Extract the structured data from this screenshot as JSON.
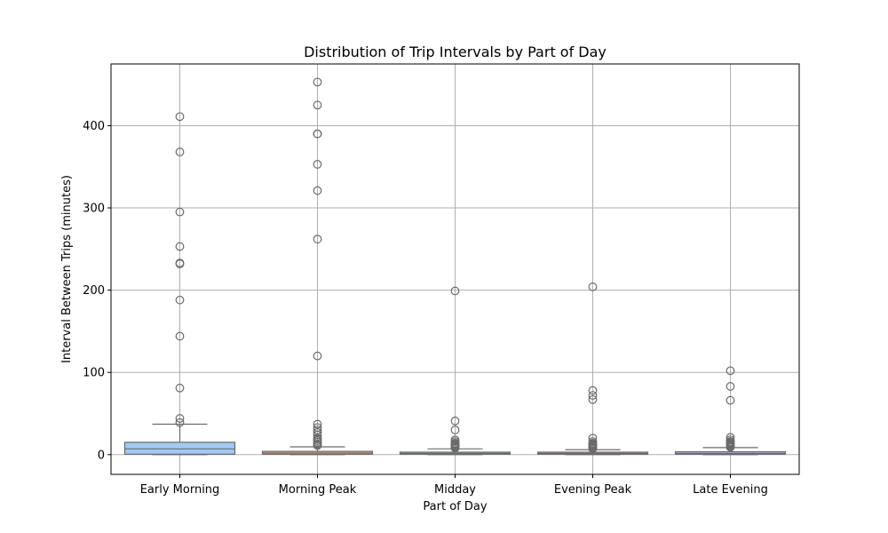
{
  "chart_data": {
    "type": "box",
    "title": "Distribution of Trip Intervals by Part of Day",
    "xlabel": "Part of Day",
    "ylabel": "Interval Between Trips (minutes)",
    "ylim": [
      -24,
      475
    ],
    "yticks": [
      0,
      100,
      200,
      300,
      400
    ],
    "grid": true,
    "categories": [
      "Early Morning",
      "Morning Peak",
      "Midday",
      "Evening Peak",
      "Late Evening"
    ],
    "colors": {
      "Early Morning": "#a1c9f4",
      "Morning Peak": "#ffb482",
      "Midday": "#8de5a1",
      "Evening Peak": "#ff9f9b",
      "Late Evening": "#d0bbff"
    },
    "edge_color": "#6b6b6b",
    "grid_color": "#b0b0b0",
    "boxes": [
      {
        "category": "Early Morning",
        "whislo": 0,
        "q1": 0.5,
        "med": 7,
        "q3": 15,
        "whishi": 37,
        "fliers": [
          411,
          368,
          295,
          253,
          233,
          232,
          188,
          144,
          81,
          44,
          39
        ]
      },
      {
        "category": "Morning Peak",
        "whislo": 0,
        "q1": 0.5,
        "med": 2,
        "q3": 4,
        "whishi": 9.5,
        "fliers": [
          453,
          425,
          390,
          390,
          353,
          321,
          262,
          120,
          37,
          33,
          30,
          27,
          24,
          20,
          19,
          17,
          15,
          13,
          12,
          11
        ]
      },
      {
        "category": "Midday",
        "whislo": 0,
        "q1": 0.5,
        "med": 1.5,
        "q3": 3,
        "whishi": 7,
        "fliers": [
          199,
          41,
          30,
          18,
          16,
          14,
          13,
          12,
          11,
          10,
          9,
          8
        ]
      },
      {
        "category": "Evening Peak",
        "whislo": 0,
        "q1": 0.5,
        "med": 1.5,
        "q3": 3,
        "whishi": 6,
        "fliers": [
          204,
          78,
          72,
          67,
          20,
          16,
          14,
          13,
          12,
          11,
          10,
          9,
          8,
          7
        ]
      },
      {
        "category": "Late Evening",
        "whislo": 0,
        "q1": 0.5,
        "med": 1.5,
        "q3": 3.5,
        "whishi": 8.5,
        "fliers": [
          102,
          83,
          66,
          21,
          18,
          16,
          15,
          14,
          13,
          12,
          11,
          10,
          9
        ]
      }
    ]
  }
}
